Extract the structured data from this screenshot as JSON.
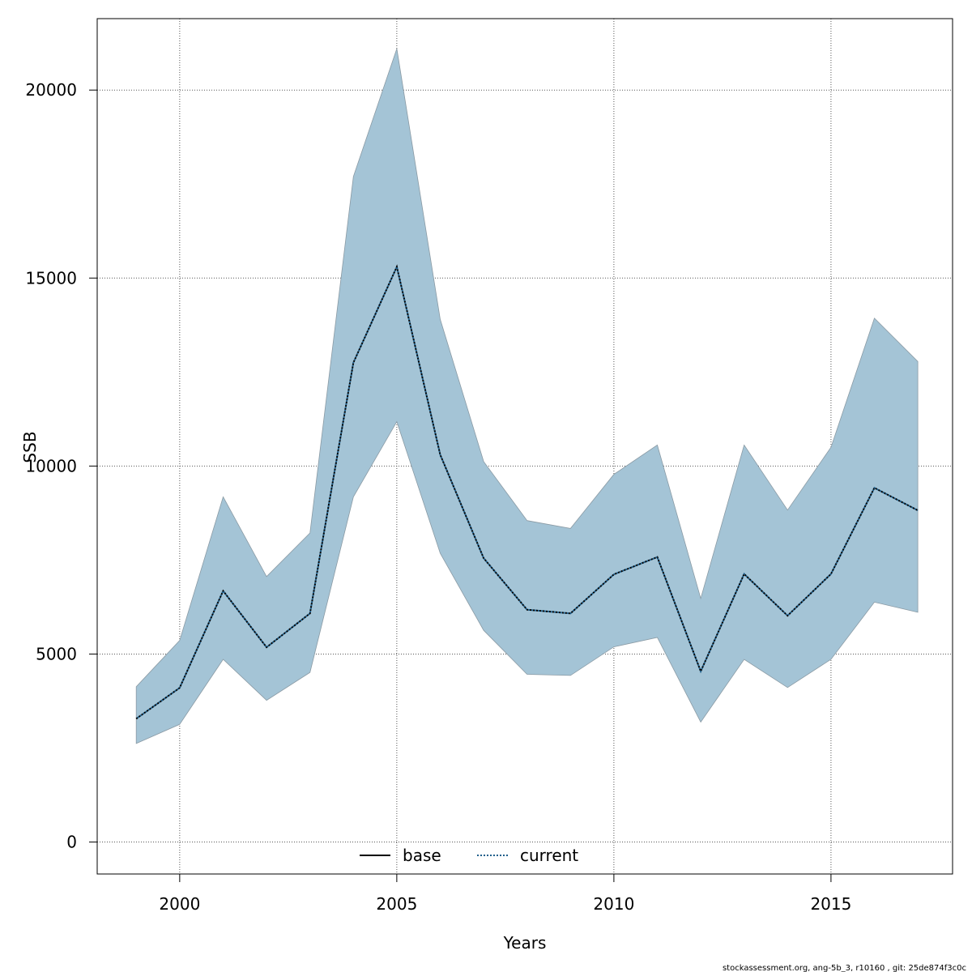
{
  "chart_data": {
    "type": "line",
    "title": "",
    "xlabel": "Years",
    "ylabel": "SSB",
    "xlim": [
      1998.1,
      2017.8
    ],
    "ylim": [
      -850,
      21900
    ],
    "x_ticks": [
      2000,
      2005,
      2010,
      2015
    ],
    "y_ticks": [
      0,
      5000,
      10000,
      15000,
      20000
    ],
    "grid": true,
    "legend_position": "bottom-center",
    "legend": [
      {
        "label": "base",
        "style": "solid",
        "color": "#000000"
      },
      {
        "label": "current",
        "style": "dotted",
        "color": "#1f5f8b"
      }
    ],
    "x": [
      1999,
      2000,
      2001,
      2002,
      2003,
      2004,
      2005,
      2006,
      2007,
      2008,
      2009,
      2010,
      2011,
      2012,
      2013,
      2014,
      2015,
      2016,
      2017
    ],
    "series": [
      {
        "name": "current",
        "style": "dotted",
        "values": [
          3280,
          4100,
          6680,
          5180,
          6080,
          12750,
          15300,
          10300,
          7550,
          6180,
          6080,
          7120,
          7580,
          4540,
          7130,
          6020,
          7130,
          9420,
          8820
        ],
        "lower": [
          2620,
          3130,
          4860,
          3770,
          4510,
          9180,
          11180,
          7680,
          5630,
          4460,
          4430,
          5190,
          5440,
          3190,
          4860,
          4110,
          4860,
          6380,
          6110
        ],
        "upper": [
          4130,
          5360,
          9180,
          7060,
          8220,
          17700,
          21100,
          13900,
          10120,
          8550,
          8340,
          9780,
          10560,
          6480,
          10560,
          8830,
          10500,
          13930,
          12780
        ]
      }
    ],
    "colors": {
      "band_fill": "#a4c4d6",
      "band_stroke": "#8a9aa4",
      "line": "#000000",
      "line_dots": "#1f5f8b",
      "grid": "#555555"
    }
  },
  "footer": "stockassessment.org, ang-5b_3, r10160 , git: 25de874f3c0c"
}
